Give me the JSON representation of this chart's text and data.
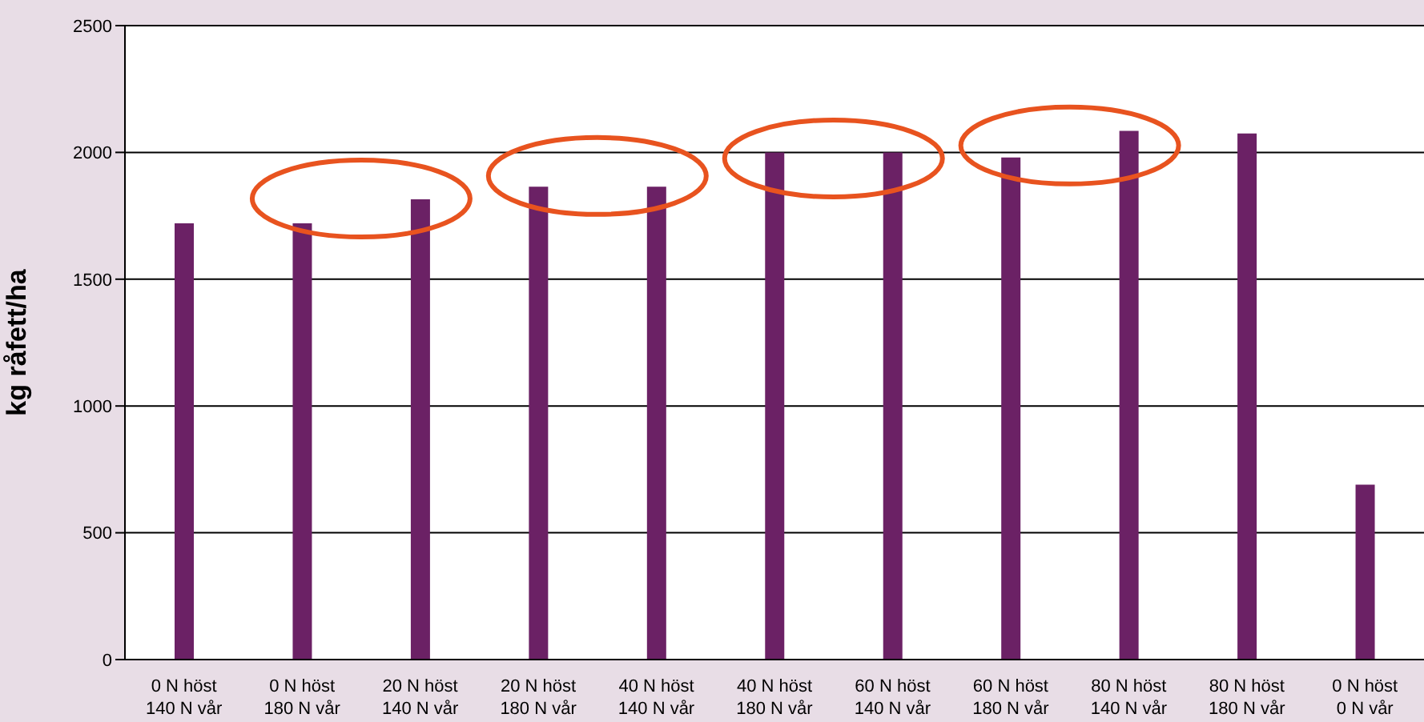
{
  "chart_data": {
    "type": "bar",
    "ylabel": "kg råfett/ha",
    "categories": [
      "0 N höst\n140 N vår",
      "0 N höst\n180 N vår",
      "20 N höst\n140 N vår",
      "20 N höst\n180 N vår",
      "40 N höst\n140 N vår",
      "40 N höst\n180 N vår",
      "60 N höst\n140 N vår",
      "60 N höst\n180 N vår",
      "80 N höst\n140 N vår",
      "80 N höst\n180 N vår",
      "0 N höst\n0 N vår"
    ],
    "values": [
      1720,
      1720,
      1815,
      1865,
      1865,
      2000,
      2000,
      1980,
      2085,
      2075,
      690
    ],
    "color": "#6b2165",
    "ylim": [
      0,
      2500
    ],
    "yticks": [
      0,
      500,
      1000,
      1500,
      2000,
      2500
    ],
    "grid": "y"
  }
}
